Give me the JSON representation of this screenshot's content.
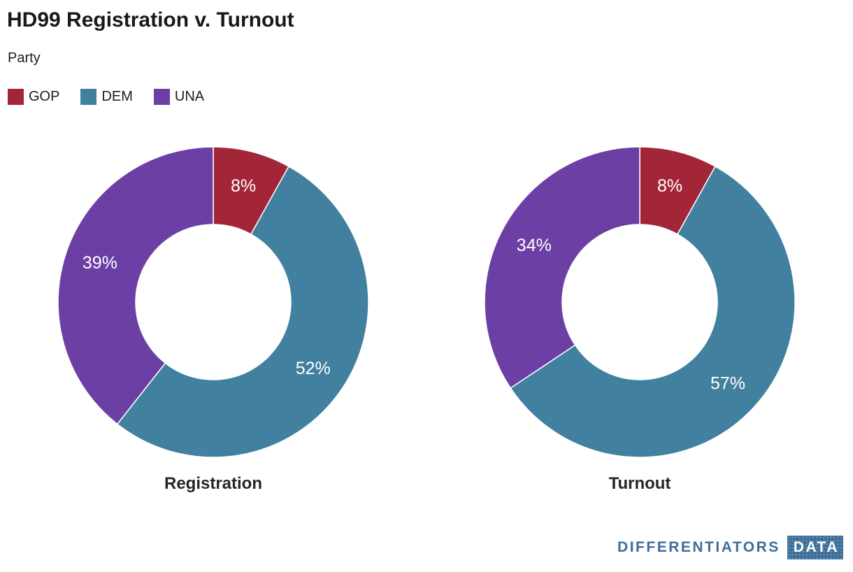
{
  "header": {
    "title": "HD99 Registration v. Turnout",
    "subtitle": "Party"
  },
  "legend": {
    "position": "top-left",
    "items": [
      {
        "label": "GOP",
        "color": "#a32638"
      },
      {
        "label": "DEM",
        "color": "#41809f"
      },
      {
        "label": "UNA",
        "color": "#6c3fa4"
      }
    ]
  },
  "chart_data": [
    {
      "type": "pie",
      "style": "donut",
      "inner_radius_ratio": 0.5,
      "title": "Registration",
      "labels": [
        "GOP",
        "DEM",
        "UNA"
      ],
      "values": [
        8,
        52,
        39
      ],
      "value_suffix": "%",
      "colors": [
        "#a32638",
        "#41809f",
        "#6c3fa4"
      ],
      "start_angle_deg": 0,
      "direction": "clockwise",
      "label_color": "#ffffff"
    },
    {
      "type": "pie",
      "style": "donut",
      "inner_radius_ratio": 0.5,
      "title": "Turnout",
      "labels": [
        "GOP",
        "DEM",
        "UNA"
      ],
      "values": [
        8,
        57,
        34
      ],
      "value_suffix": "%",
      "colors": [
        "#a32638",
        "#41809f",
        "#6c3fa4"
      ],
      "start_angle_deg": 0,
      "direction": "clockwise",
      "label_color": "#ffffff"
    }
  ],
  "footer": {
    "brand_name": "DIFFERENTIATORS",
    "brand_box": "DATA",
    "brand_color": "#3d6e99"
  }
}
